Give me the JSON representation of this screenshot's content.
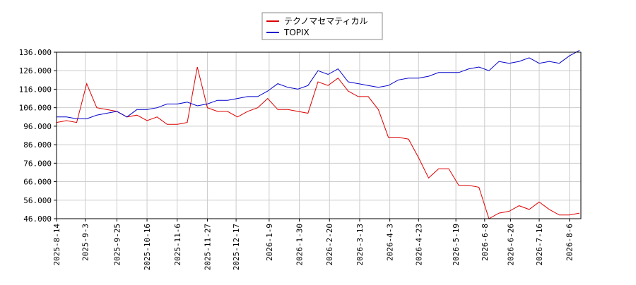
{
  "chart_data": {
    "type": "line",
    "x": [
      "2025-8-14",
      "2025-8-21",
      "2025-8-28",
      "2025-9-4",
      "2025-9-11",
      "2025-9-18",
      "2025-9-25",
      "2025-10-2",
      "2025-10-9",
      "2025-10-16",
      "2025-10-23",
      "2025-10-30",
      "2025-11-6",
      "2025-11-13",
      "2025-11-20",
      "2025-11-27",
      "2025-12-4",
      "2025-12-11",
      "2025-12-18",
      "2025-12-25",
      "2026-1-1",
      "2026-1-8",
      "2026-1-15",
      "2026-1-22",
      "2026-1-29",
      "2026-2-5",
      "2026-2-12",
      "2026-2-19",
      "2026-2-26",
      "2026-3-5",
      "2026-3-12",
      "2026-3-19",
      "2026-3-26",
      "2026-4-2",
      "2026-4-9",
      "2026-4-16",
      "2026-4-23",
      "2026-4-30",
      "2026-5-7",
      "2026-5-14",
      "2026-5-21",
      "2026-5-28",
      "2026-6-4",
      "2026-6-11",
      "2026-6-18",
      "2026-6-25",
      "2026-7-2",
      "2026-7-9",
      "2026-7-16",
      "2026-7-23",
      "2026-7-30",
      "2026-8-6",
      "2026-8-13"
    ],
    "series": [
      {
        "name": "テクノマセマティカル",
        "color": "#dd0000",
        "values": [
          98,
          99,
          98,
          119,
          106,
          105,
          104,
          101,
          102,
          99,
          101,
          97,
          97,
          98,
          128,
          106,
          104,
          104,
          101,
          104,
          106,
          111,
          105,
          105,
          104,
          103,
          120,
          118,
          122,
          115,
          112,
          112,
          105,
          90,
          90,
          89,
          79,
          68,
          73,
          73,
          64,
          64,
          63,
          46,
          49,
          50,
          53,
          51,
          55,
          51,
          48,
          48,
          49
        ]
      },
      {
        "name": "TOPIX",
        "color": "#0000cc",
        "values": [
          101,
          101,
          100,
          100,
          102,
          103,
          104,
          101,
          105,
          105,
          106,
          108,
          108,
          109,
          107,
          108,
          110,
          110,
          111,
          112,
          112,
          115,
          119,
          117,
          116,
          118,
          126,
          124,
          127,
          120,
          119,
          118,
          117,
          118,
          121,
          122,
          122,
          123,
          125,
          125,
          125,
          127,
          128,
          126,
          131,
          130,
          131,
          133,
          130,
          131,
          130,
          134,
          137
        ]
      }
    ],
    "xlim": [
      "2025-8-14",
      "2026-8-14"
    ],
    "xticks": [
      "2025-8-14",
      "2025-9-3",
      "2025-9-25",
      "2025-10-16",
      "2025-11-6",
      "2025-11-27",
      "2025-12-17",
      "2026-1-9",
      "2026-1-30",
      "2026-2-20",
      "2026-3-13",
      "2026-4-3",
      "2026-4-23",
      "2026-5-19",
      "2026-6-8",
      "2026-6-26",
      "2026-7-16",
      "2026-8-6"
    ],
    "ylim": [
      46,
      136
    ],
    "yticks": [
      {
        "value": 46,
        "label": "46.000"
      },
      {
        "value": 56,
        "label": "56.000"
      },
      {
        "value": 66,
        "label": "66.000"
      },
      {
        "value": 76,
        "label": "76.000"
      },
      {
        "value": 86,
        "label": "86.000"
      },
      {
        "value": 96,
        "label": "96.000"
      },
      {
        "value": 106,
        "label": "106.000"
      },
      {
        "value": 116,
        "label": "116.000"
      },
      {
        "value": 126,
        "label": "126.000"
      },
      {
        "value": 136,
        "label": "136.000"
      }
    ],
    "grid": true
  }
}
